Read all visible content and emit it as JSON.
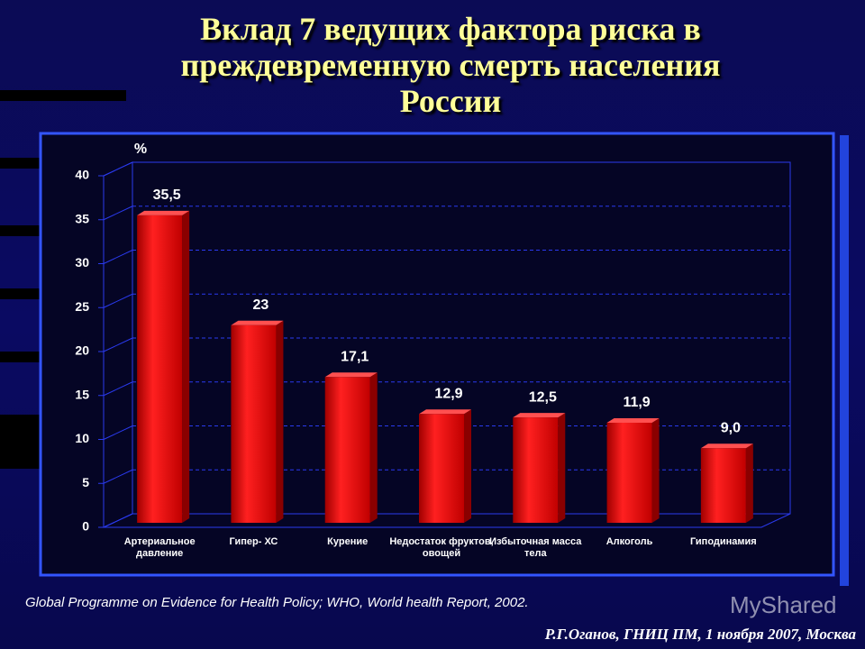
{
  "title": "Вклад 7 ведущих фактора риска в преждевременную смерть населения России",
  "chart_data": {
    "type": "bar",
    "y_label": "%",
    "categories": [
      "Артериальное давление",
      "Гипер- ХС",
      "Курение",
      "Недостаток фруктов, овощей",
      "Избыточная масса тела",
      "Алкоголь",
      "Гиподинамия"
    ],
    "values": [
      35.5,
      23,
      17.1,
      12.9,
      12.5,
      11.9,
      9.0
    ],
    "value_labels": [
      "35,5",
      "23",
      "17,1",
      "12,9",
      "12,5",
      "11,9",
      "9,0"
    ],
    "color": "#e00000",
    "ylim": [
      0,
      40
    ],
    "yticks": [
      0,
      5,
      10,
      15,
      20,
      25,
      30,
      35,
      40
    ],
    "grid": true
  },
  "source": "Global Programme on Evidence for Health Policy; WHO, World health Report, 2002.",
  "author": "Р.Г.Оганов, ГНИЦ ПМ, 1 ноября 2007, Москва",
  "watermark": "MyShared"
}
